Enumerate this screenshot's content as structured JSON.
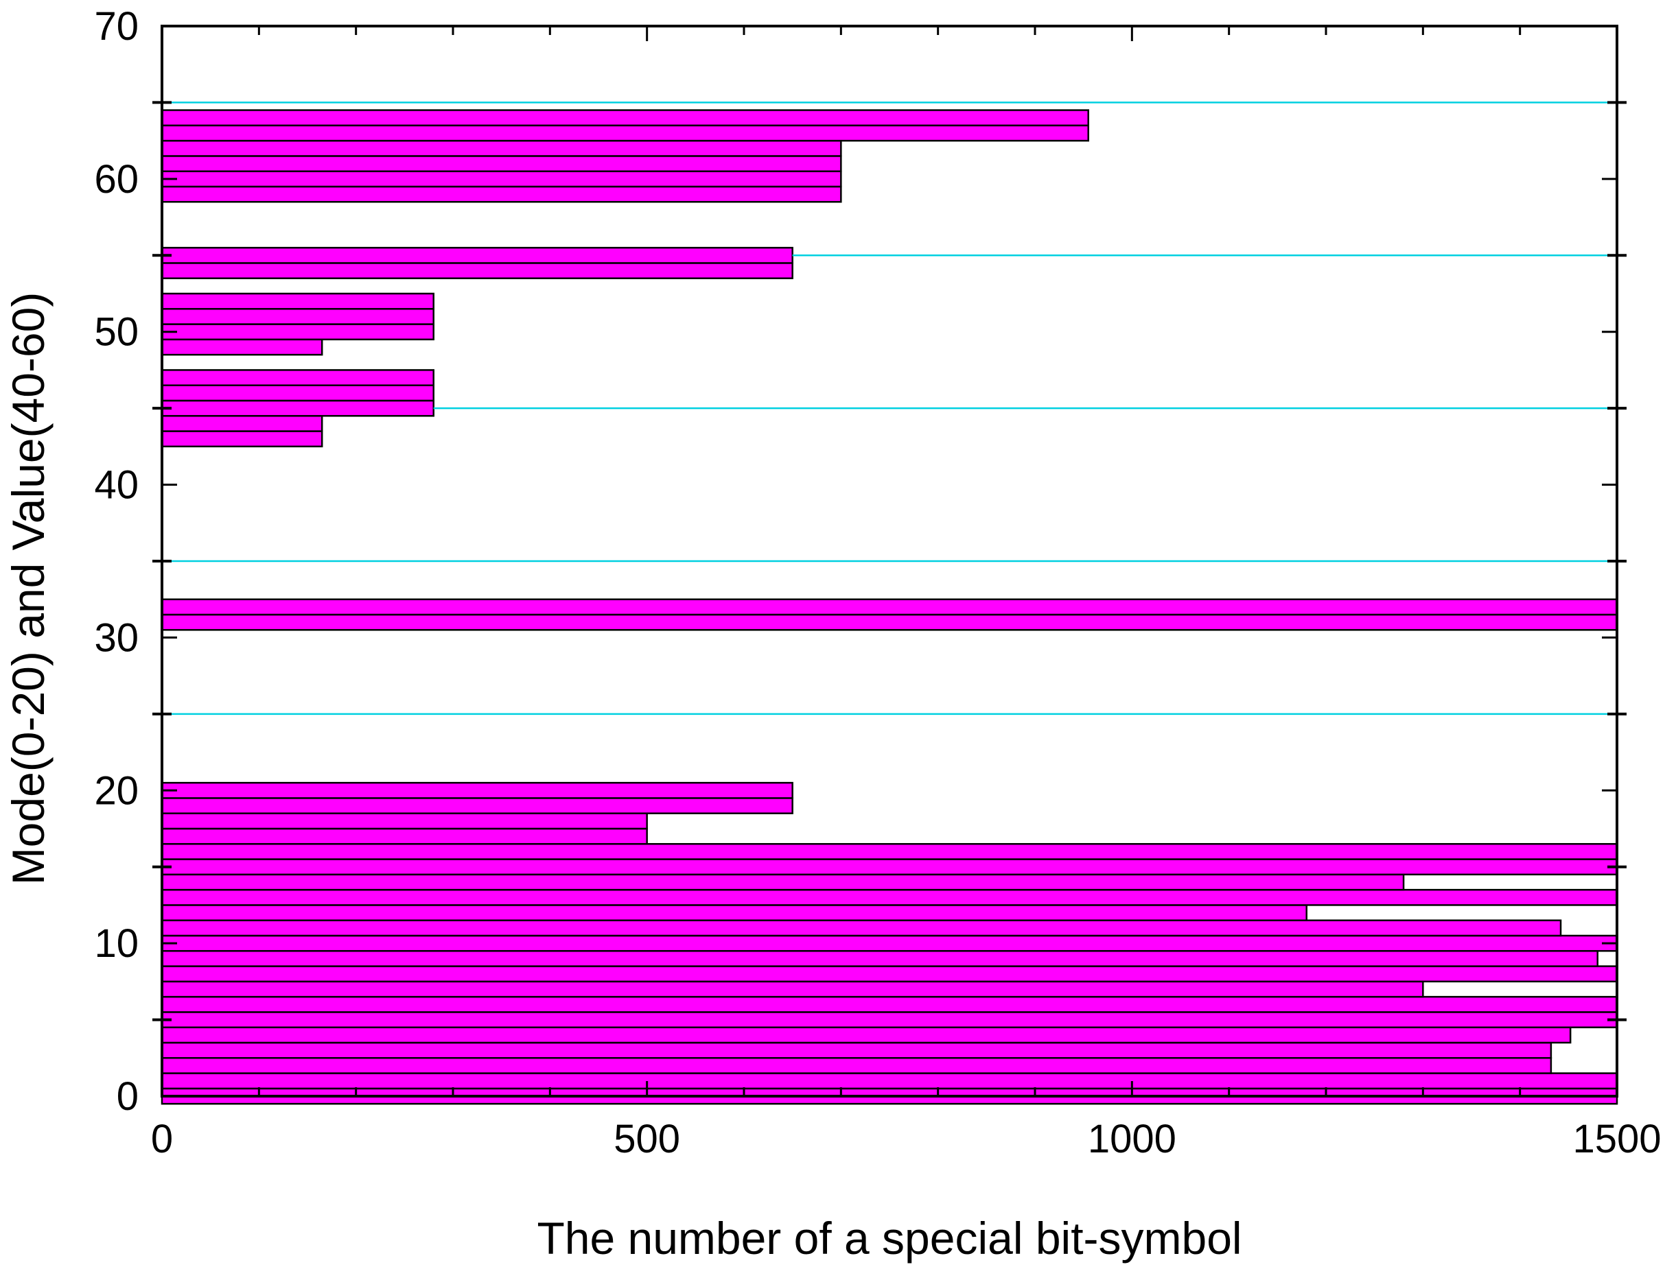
{
  "chart_data": {
    "type": "bar",
    "orientation": "horizontal",
    "xlabel": "The number of a special bit-symbol",
    "ylabel": "Mode(0-20) and Value(40-60)",
    "xlim": [
      0,
      1500
    ],
    "ylim": [
      0,
      70
    ],
    "x_ticks": [
      "0",
      "500",
      "1000",
      "1500"
    ],
    "y_ticks": [
      "0",
      "10",
      "20",
      "30",
      "40",
      "50",
      "60",
      "70"
    ],
    "x_minor_step": 100,
    "y_minor_ticks": [
      5,
      15,
      25,
      35,
      45,
      55,
      65
    ],
    "reference_lines_y": [
      5,
      25,
      35,
      45,
      55,
      65
    ],
    "grid": false,
    "legend": "none",
    "colors": {
      "bar_fill": "#ff00ff",
      "bar_edge": "#000000",
      "reference_line": "#00d0e0",
      "axis": "#000000"
    },
    "bars": [
      {
        "y": 0,
        "value": 1500
      },
      {
        "y": 1,
        "value": 1500
      },
      {
        "y": 2,
        "value": 1432
      },
      {
        "y": 3,
        "value": 1432
      },
      {
        "y": 4,
        "value": 1452
      },
      {
        "y": 5,
        "value": 1500
      },
      {
        "y": 6,
        "value": 1500
      },
      {
        "y": 7,
        "value": 1300
      },
      {
        "y": 8,
        "value": 1500
      },
      {
        "y": 9,
        "value": 1480
      },
      {
        "y": 10,
        "value": 1500
      },
      {
        "y": 11,
        "value": 1442
      },
      {
        "y": 12,
        "value": 1180
      },
      {
        "y": 13,
        "value": 1500
      },
      {
        "y": 14,
        "value": 1280
      },
      {
        "y": 15,
        "value": 1500
      },
      {
        "y": 16,
        "value": 1500
      },
      {
        "y": 17,
        "value": 500
      },
      {
        "y": 18,
        "value": 500
      },
      {
        "y": 19,
        "value": 650
      },
      {
        "y": 20,
        "value": 650
      },
      {
        "y": 31,
        "value": 1500
      },
      {
        "y": 32,
        "value": 1500
      },
      {
        "y": 43,
        "value": 165
      },
      {
        "y": 44,
        "value": 165
      },
      {
        "y": 45,
        "value": 280
      },
      {
        "y": 46,
        "value": 280
      },
      {
        "y": 47,
        "value": 280
      },
      {
        "y": 49,
        "value": 165
      },
      {
        "y": 50,
        "value": 280
      },
      {
        "y": 51,
        "value": 280
      },
      {
        "y": 52,
        "value": 280
      },
      {
        "y": 54,
        "value": 650
      },
      {
        "y": 55,
        "value": 650
      },
      {
        "y": 59,
        "value": 700
      },
      {
        "y": 60,
        "value": 700
      },
      {
        "y": 61,
        "value": 700
      },
      {
        "y": 62,
        "value": 700
      },
      {
        "y": 63,
        "value": 955
      },
      {
        "y": 64,
        "value": 955
      }
    ]
  }
}
